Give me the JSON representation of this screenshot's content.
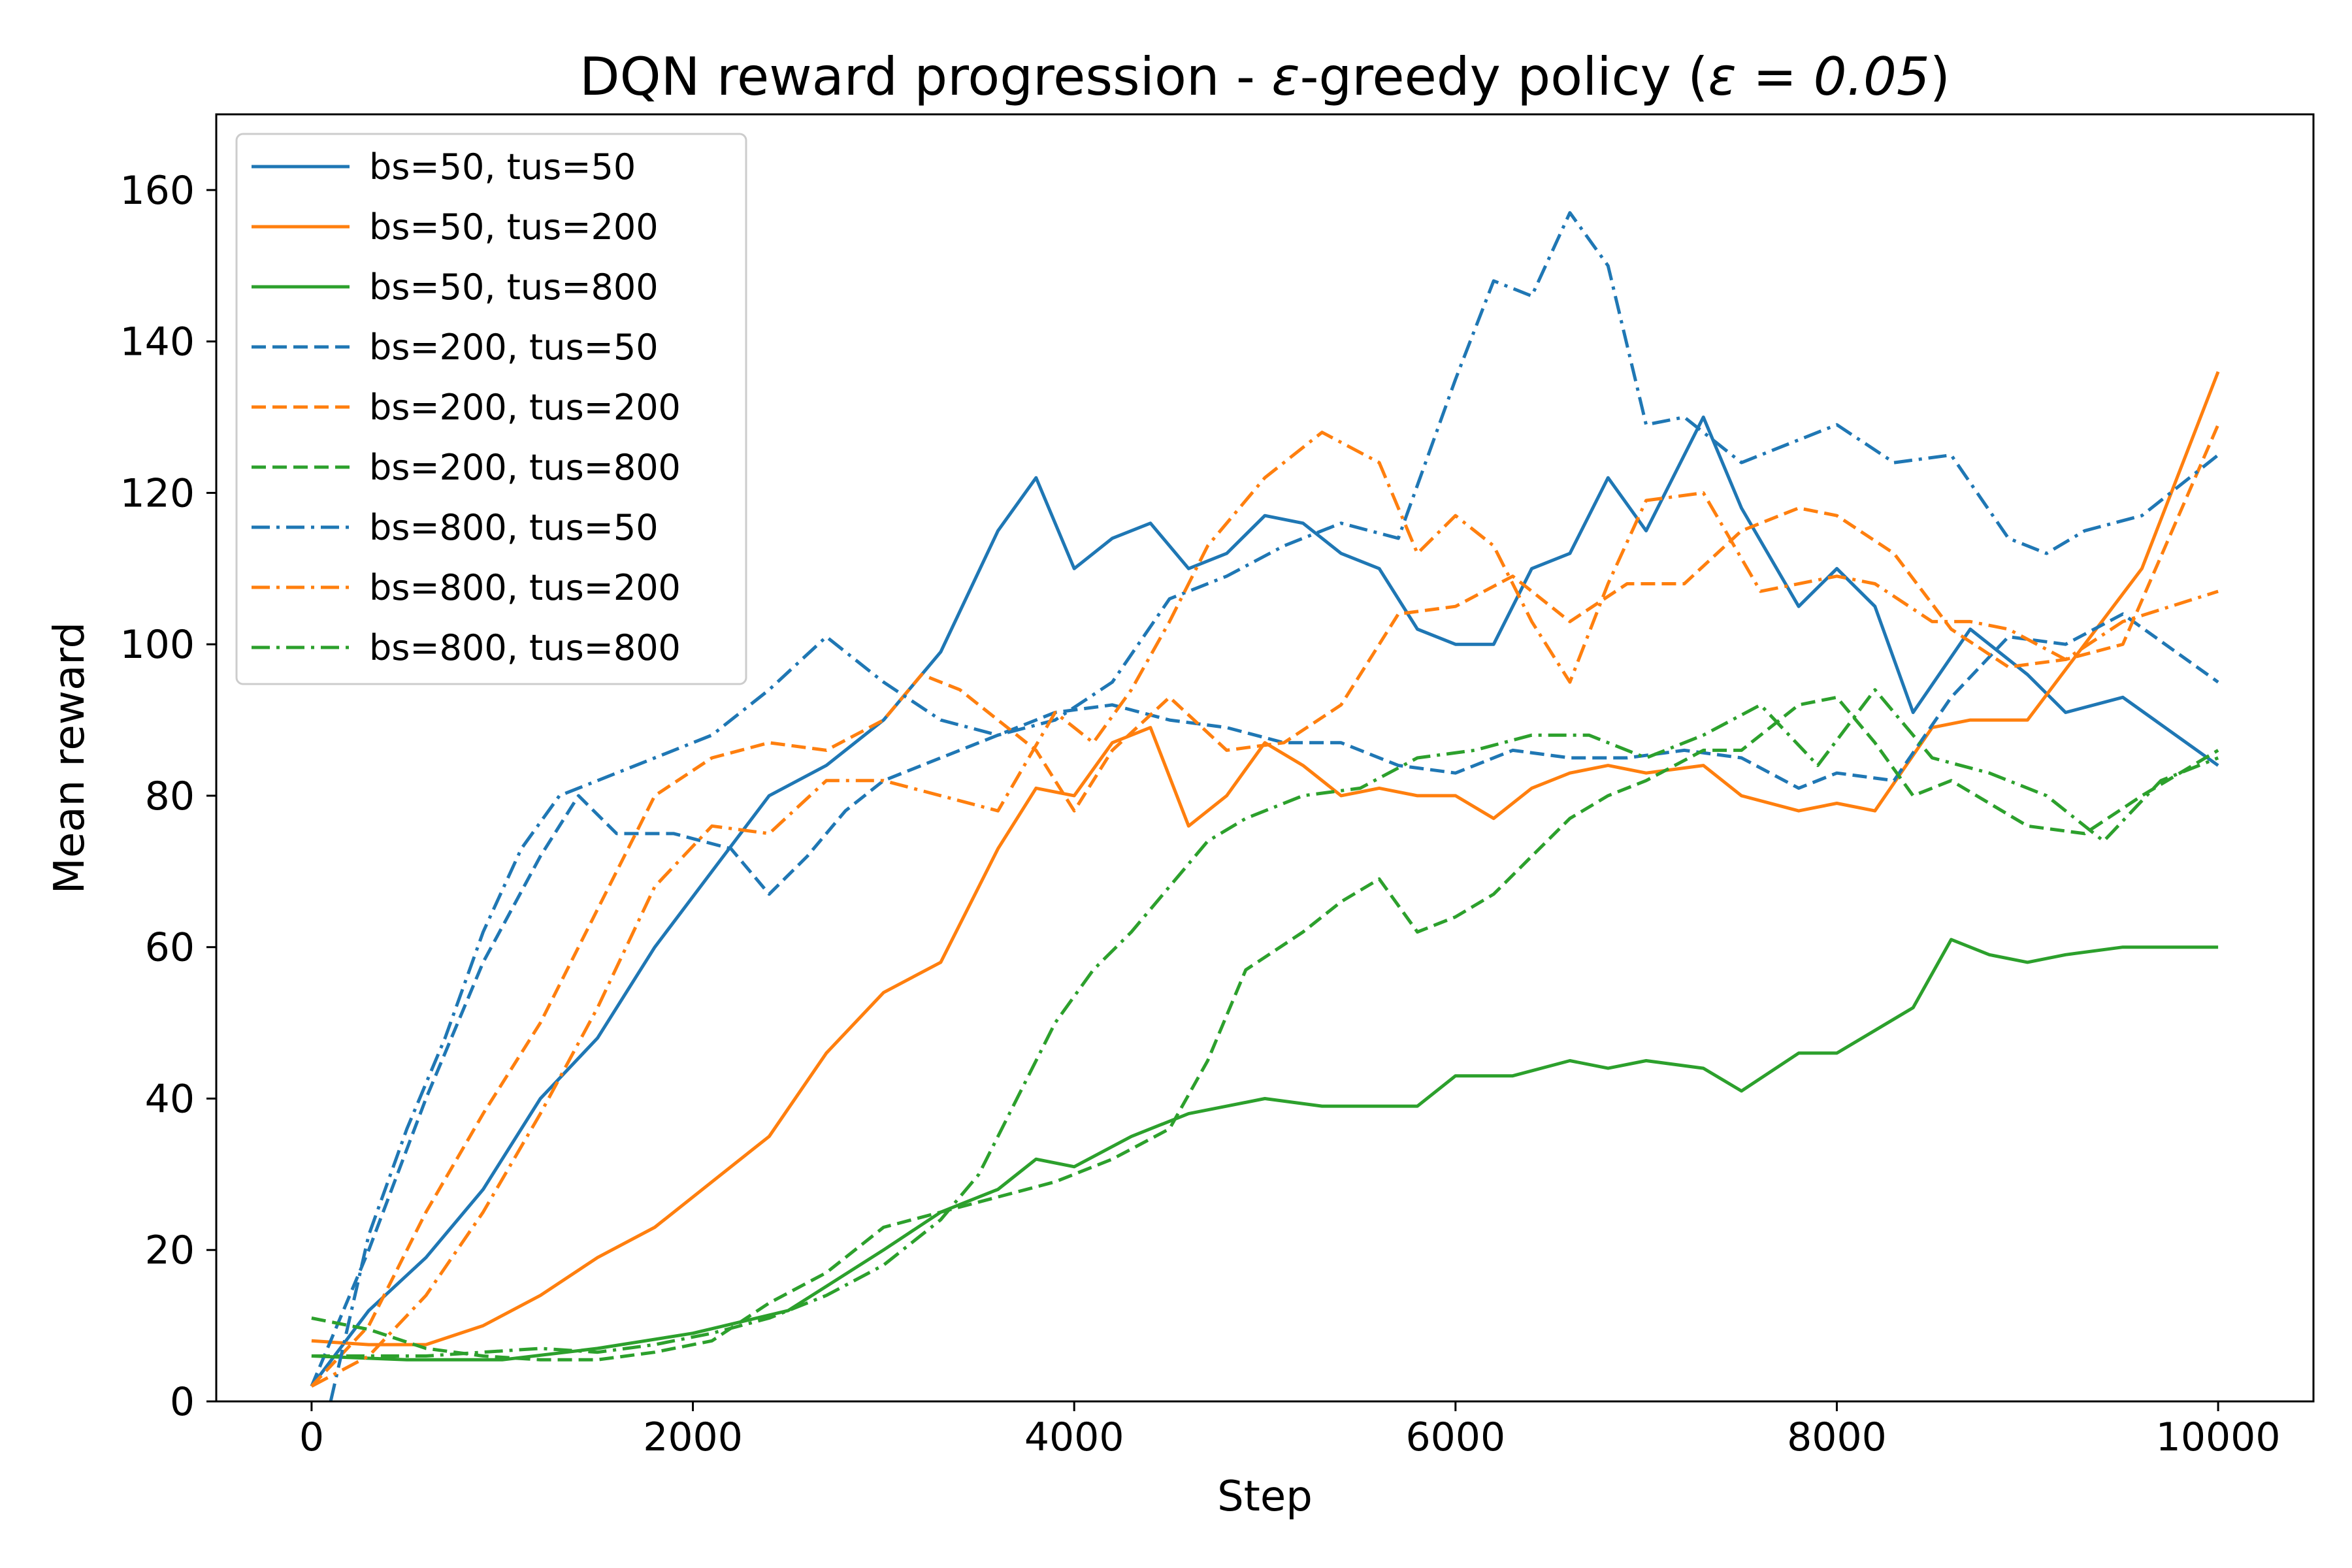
{
  "chart_data": {
    "type": "line",
    "title": "DQN reward progression - ε-greedy policy (ε = 0.05)",
    "title_parts": {
      "prefix": "DQN reward progression - ",
      "eps": "ε",
      "middle": "-greedy policy (",
      "equation": "ε = 0.05",
      "suffix": ")"
    },
    "xlabel": "Step",
    "ylabel": "Mean reward",
    "xlim": [
      -500,
      10500
    ],
    "ylim": [
      0,
      170
    ],
    "xticks": [
      0,
      2000,
      4000,
      6000,
      8000,
      10000
    ],
    "xtick_labels": [
      "0",
      "2000",
      "4000",
      "6000",
      "8000",
      "10000"
    ],
    "yticks": [
      0,
      20,
      40,
      60,
      80,
      100,
      120,
      140,
      160
    ],
    "ytick_labels": [
      "0",
      "20",
      "40",
      "60",
      "80",
      "100",
      "120",
      "140",
      "160"
    ],
    "grid": false,
    "legend_position": "top-left",
    "colors": {
      "blue": "#1f77b4",
      "orange": "#ff7f0e",
      "green": "#2ca02c"
    },
    "series": [
      {
        "name": "bs=50, tus=50",
        "color": "#1f77b4",
        "style": "solid",
        "x": [
          0,
          300,
          600,
          900,
          1200,
          1500,
          1800,
          2100,
          2400,
          2700,
          3000,
          3300,
          3600,
          3800,
          4000,
          4200,
          4400,
          4600,
          4800,
          5000,
          5200,
          5400,
          5600,
          5800,
          6000,
          6200,
          6400,
          6600,
          6800,
          7000,
          7300,
          7500,
          7800,
          8000,
          8200,
          8400,
          8700,
          9000,
          9200,
          9500,
          10000
        ],
        "y": [
          2,
          12,
          19,
          28,
          40,
          48,
          60,
          70,
          80,
          84,
          90,
          99,
          115,
          122,
          110,
          114,
          116,
          110,
          112,
          117,
          116,
          112,
          110,
          102,
          100,
          100,
          110,
          112,
          122,
          115,
          130,
          118,
          105,
          110,
          105,
          91,
          102,
          96,
          91,
          93,
          84
        ]
      },
      {
        "name": "bs=50, tus=200",
        "color": "#ff7f0e",
        "style": "solid",
        "x": [
          0,
          300,
          600,
          900,
          1200,
          1500,
          1800,
          2100,
          2400,
          2700,
          3000,
          3300,
          3600,
          3800,
          4000,
          4200,
          4400,
          4600,
          4800,
          5000,
          5200,
          5400,
          5600,
          5800,
          6000,
          6200,
          6400,
          6600,
          6800,
          7000,
          7300,
          7500,
          7800,
          8000,
          8200,
          8500,
          8700,
          9000,
          9300,
          9600,
          10000
        ],
        "y": [
          8,
          7.5,
          7.5,
          10,
          14,
          19,
          23,
          29,
          35,
          46,
          54,
          58,
          73,
          81,
          80,
          87,
          89,
          76,
          80,
          87,
          84,
          80,
          81,
          80,
          80,
          77,
          81,
          83,
          84,
          83,
          84,
          80,
          78,
          79,
          78,
          89,
          90,
          90,
          100,
          110,
          136
        ]
      },
      {
        "name": "bs=50, tus=800",
        "color": "#2ca02c",
        "style": "solid",
        "x": [
          0,
          500,
          1000,
          1500,
          2000,
          2500,
          3000,
          3300,
          3600,
          3800,
          4000,
          4300,
          4600,
          4800,
          5000,
          5300,
          5600,
          5800,
          6000,
          6300,
          6600,
          6800,
          7000,
          7300,
          7500,
          7800,
          8000,
          8200,
          8400,
          8600,
          8800,
          9000,
          9200,
          9500,
          10000
        ],
        "y": [
          6,
          5.5,
          5.5,
          7,
          9,
          12,
          20,
          25,
          28,
          32,
          31,
          35,
          38,
          39,
          40,
          39,
          39,
          39,
          43,
          43,
          45,
          44,
          45,
          44,
          41,
          46,
          46,
          49,
          52,
          61,
          59,
          58,
          59,
          60,
          60
        ]
      },
      {
        "name": "bs=200, tus=50",
        "color": "#1f77b4",
        "style": "dashed",
        "x": [
          0,
          300,
          600,
          900,
          1200,
          1400,
          1600,
          1900,
          2200,
          2400,
          2600,
          2800,
          3000,
          3300,
          3600,
          3900,
          4200,
          4500,
          4800,
          5100,
          5400,
          5700,
          6000,
          6300,
          6600,
          6900,
          7200,
          7500,
          7800,
          8000,
          8300,
          8600,
          8900,
          9200,
          9500,
          10000
        ],
        "y": [
          2,
          20,
          40,
          58,
          72,
          80,
          75,
          75,
          73,
          67,
          72,
          78,
          82,
          85,
          88,
          91,
          92,
          90,
          89,
          87,
          87,
          84,
          83,
          86,
          85,
          85,
          86,
          85,
          81,
          83,
          82,
          93,
          101,
          100,
          104,
          95
        ]
      },
      {
        "name": "bs=200, tus=200",
        "color": "#ff7f0e",
        "style": "dashed",
        "x": [
          0,
          300,
          600,
          900,
          1200,
          1500,
          1800,
          2100,
          2400,
          2700,
          3000,
          3200,
          3400,
          3600,
          3800,
          4000,
          4200,
          4500,
          4800,
          5100,
          5400,
          5700,
          6000,
          6300,
          6600,
          6900,
          7200,
          7500,
          7800,
          8000,
          8300,
          8600,
          8900,
          9200,
          9500,
          10000
        ],
        "y": [
          2,
          10,
          25,
          38,
          50,
          65,
          80,
          85,
          87,
          86,
          90,
          96,
          94,
          90,
          86,
          78,
          86,
          93,
          86,
          87,
          92,
          104,
          105,
          109,
          103,
          108,
          108,
          115,
          118,
          117,
          112,
          102,
          97,
          98,
          100,
          129
        ]
      },
      {
        "name": "bs=200, tus=800",
        "color": "#2ca02c",
        "style": "dashed",
        "x": [
          0,
          300,
          600,
          900,
          1200,
          1500,
          1800,
          2100,
          2400,
          2700,
          3000,
          3300,
          3600,
          3900,
          4200,
          4500,
          4700,
          4900,
          5200,
          5400,
          5600,
          5800,
          6000,
          6200,
          6400,
          6600,
          6800,
          7000,
          7300,
          7500,
          7800,
          8000,
          8200,
          8400,
          8600,
          8800,
          9000,
          9300,
          9600,
          10000
        ],
        "y": [
          11,
          9.5,
          7,
          6,
          5.5,
          5.5,
          6.5,
          8,
          13,
          17,
          23,
          25,
          27,
          29,
          32,
          36,
          45,
          57,
          62,
          66,
          69,
          62,
          64,
          67,
          72,
          77,
          80,
          82,
          86,
          86,
          92,
          93,
          87,
          80,
          82,
          79,
          76,
          75,
          80,
          86
        ]
      },
      {
        "name": "bs=800, tus=50",
        "color": "#1f77b4",
        "style": "dashdot",
        "x": [
          100,
          300,
          500,
          700,
          900,
          1100,
          1300,
          1500,
          1800,
          2100,
          2400,
          2700,
          3000,
          3300,
          3600,
          3900,
          4200,
          4500,
          4800,
          5100,
          5400,
          5700,
          6000,
          6200,
          6400,
          6600,
          6800,
          7000,
          7200,
          7500,
          7800,
          8000,
          8300,
          8600,
          8900,
          9100,
          9300,
          9600,
          10000
        ],
        "y": [
          0,
          22,
          36,
          48,
          62,
          73,
          80,
          82,
          85,
          88,
          94,
          101,
          95,
          90,
          88,
          90,
          95,
          106,
          109,
          113,
          116,
          114,
          135,
          148,
          146,
          157,
          150,
          129,
          130,
          124,
          127,
          129,
          124,
          125,
          114,
          112,
          115,
          117,
          125
        ]
      },
      {
        "name": "bs=800, tus=200",
        "color": "#ff7f0e",
        "style": "dashdot",
        "x": [
          0,
          300,
          600,
          900,
          1200,
          1500,
          1800,
          2100,
          2400,
          2700,
          3000,
          3300,
          3600,
          3900,
          4100,
          4300,
          4500,
          4700,
          5000,
          5300,
          5600,
          5800,
          6000,
          6200,
          6400,
          6600,
          6800,
          7000,
          7300,
          7600,
          8000,
          8200,
          8500,
          8700,
          8900,
          9200,
          9500,
          10000
        ],
        "y": [
          2,
          6,
          14,
          25,
          38,
          52,
          68,
          76,
          75,
          82,
          82,
          80,
          78,
          91,
          87,
          94,
          103,
          113,
          122,
          128,
          124,
          112,
          117,
          113,
          103,
          95,
          108,
          119,
          120,
          107,
          109,
          108,
          103,
          103,
          102,
          98,
          103,
          107
        ]
      },
      {
        "name": "bs=800, tus=800",
        "color": "#2ca02c",
        "style": "dashdot",
        "x": [
          0,
          300,
          600,
          900,
          1200,
          1500,
          1800,
          2100,
          2400,
          2700,
          3000,
          3300,
          3500,
          3700,
          3900,
          4100,
          4300,
          4500,
          4700,
          4900,
          5200,
          5500,
          5800,
          6100,
          6400,
          6700,
          7000,
          7300,
          7600,
          7900,
          8200,
          8500,
          8800,
          9100,
          9400,
          9700,
          10000
        ],
        "y": [
          6,
          6,
          6,
          6.5,
          7,
          6.5,
          7.5,
          9,
          11,
          14,
          18,
          24,
          30,
          40,
          50,
          57,
          62,
          68,
          74,
          77,
          80,
          81,
          85,
          86,
          88,
          88,
          85,
          88,
          92,
          84,
          94,
          85,
          83,
          80,
          74,
          82,
          85
        ]
      }
    ]
  }
}
